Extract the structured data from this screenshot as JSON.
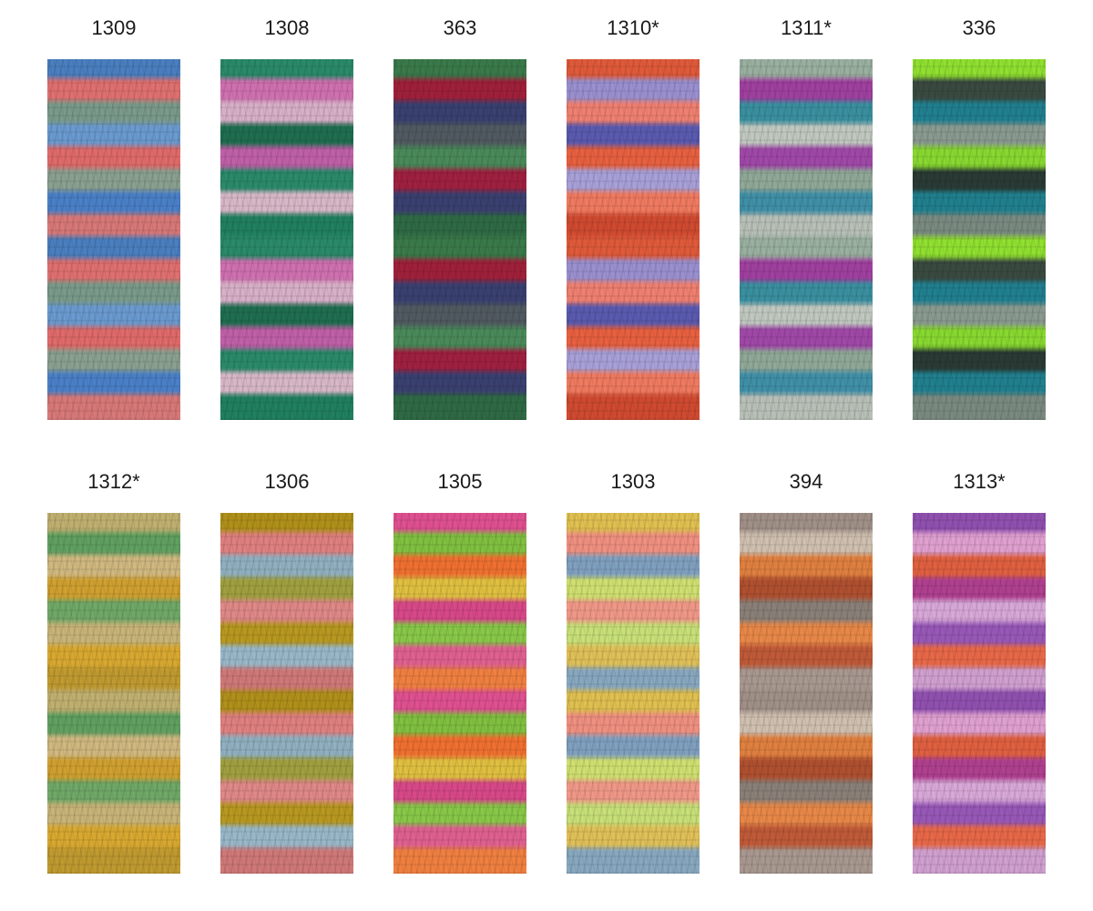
{
  "swatches": [
    {
      "label": "1309",
      "colors": [
        "#4a7fc0",
        "#e07070",
        "#7a9a8a",
        "#6a9ad0",
        "#e06a6a",
        "#8aa090",
        "#4a80c8",
        "#d87878"
      ]
    },
    {
      "label": "1308",
      "colors": [
        "#2a8a6a",
        "#d070b0",
        "#d8b0c8",
        "#1f6e50",
        "#c060a8",
        "#2a8a6a",
        "#d8b8c8",
        "#208060"
      ]
    },
    {
      "label": "363",
      "colors": [
        "#3a7a4a",
        "#a0203a",
        "#3a4070",
        "#505a60",
        "#4a8a5a",
        "#a02040",
        "#3a4070",
        "#2e6a44"
      ]
    },
    {
      "label": "1310*",
      "colors": [
        "#e05a3a",
        "#9a90d0",
        "#f08070",
        "#5a5ab0",
        "#e86040",
        "#a8a0d8",
        "#f07a60",
        "#d04a30"
      ]
    },
    {
      "label": "1311*",
      "colors": [
        "#9ab0a0",
        "#a040a0",
        "#3a90a0",
        "#c0c8c0",
        "#a048a8",
        "#90a898",
        "#4090a8",
        "#b8c0b8"
      ]
    },
    {
      "label": "336",
      "colors": [
        "#90e030",
        "#3a4a40",
        "#208090",
        "#8a9a90",
        "#88d830",
        "#2a3a34",
        "#20808e",
        "#7a8a80"
      ]
    },
    {
      "label": "1312*",
      "colors": [
        "#c0b070",
        "#60a060",
        "#d0b880",
        "#d0a030",
        "#70a868",
        "#c8b478",
        "#d8a830",
        "#c09a30"
      ]
    },
    {
      "label": "1306",
      "colors": [
        "#b0901a",
        "#e08080",
        "#90b0c0",
        "#a0a040",
        "#e08888",
        "#b89820",
        "#98b8c8",
        "#d07878"
      ]
    },
    {
      "label": "1305",
      "colors": [
        "#e05090",
        "#80c040",
        "#f07030",
        "#e0c040",
        "#d84888",
        "#88c848",
        "#e06090",
        "#f08040"
      ]
    },
    {
      "label": "1303",
      "colors": [
        "#e0c050",
        "#f09080",
        "#80a0c0",
        "#d0e070",
        "#f09888",
        "#c8e078",
        "#e0c058",
        "#88a8c0"
      ]
    },
    {
      "label": "394",
      "colors": [
        "#a09088",
        "#d0c0b0",
        "#e08040",
        "#b05030",
        "#8a8078",
        "#e88848",
        "#c05a38",
        "#a89890"
      ]
    },
    {
      "label": "1313*",
      "colors": [
        "#9050b0",
        "#e0a0d0",
        "#e06040",
        "#b04090",
        "#d8a8d8",
        "#9858b8",
        "#e86848",
        "#d0a0d0"
      ]
    }
  ]
}
